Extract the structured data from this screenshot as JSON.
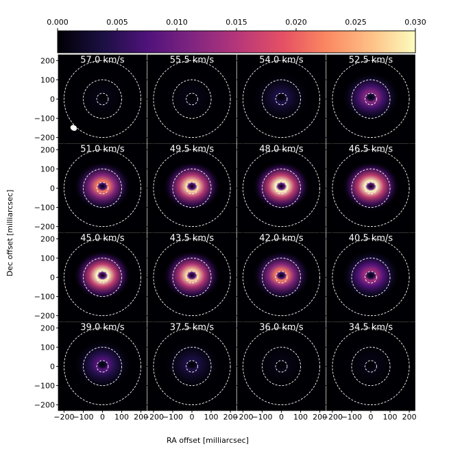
{
  "chart_data": {
    "type": "channel-map",
    "x_label": "RA offset [milliarcsec]",
    "y_label": "Dec offset [milliarcsec]",
    "colormap": "magma",
    "colorlim": [
      0,
      0.03
    ],
    "colorticks": [
      {
        "value": 0,
        "label": "0.000"
      },
      {
        "value": 0.005,
        "label": "0.005"
      },
      {
        "value": 0.01,
        "label": "0.010"
      },
      {
        "value": 0.015,
        "label": "0.015"
      },
      {
        "value": 0.02,
        "label": "0.020"
      },
      {
        "value": 0.025,
        "label": "0.025"
      },
      {
        "value": 0.03,
        "label": "0.030"
      }
    ],
    "xlim": [
      -230,
      230
    ],
    "ylim": [
      -230,
      230
    ],
    "xticks": [
      {
        "value": -200,
        "label": "−200"
      },
      {
        "value": -100,
        "label": "−100"
      },
      0,
      100,
      200
    ],
    "yticks": [
      200,
      100,
      0,
      {
        "value": -100,
        "label": "−100"
      },
      {
        "value": -200,
        "label": "−200"
      }
    ],
    "panels": [
      {
        "label": "57.0 km/s",
        "peak": 0.001
      },
      {
        "label": "55.5 km/s",
        "peak": 0.001
      },
      {
        "label": "54.0 km/s",
        "peak": 0.004
      },
      {
        "label": "52.5 km/s",
        "peak": 0.012
      },
      {
        "label": "51.0 km/s",
        "peak": 0.022
      },
      {
        "label": "49.5 km/s",
        "peak": 0.028
      },
      {
        "label": "48.0 km/s",
        "peak": 0.03
      },
      {
        "label": "46.5 km/s",
        "peak": 0.03
      },
      {
        "label": "45.0 km/s",
        "peak": 0.03
      },
      {
        "label": "43.5 km/s",
        "peak": 0.028
      },
      {
        "label": "42.0 km/s",
        "peak": 0.022
      },
      {
        "label": "40.5 km/s",
        "peak": 0.014
      },
      {
        "label": "39.0 km/s",
        "peak": 0.008
      },
      {
        "label": "37.5 km/s",
        "peak": 0.004
      },
      {
        "label": "36.0 km/s",
        "peak": 0.001
      },
      {
        "label": "34.5 km/s",
        "peak": 0.001
      }
    ]
  }
}
